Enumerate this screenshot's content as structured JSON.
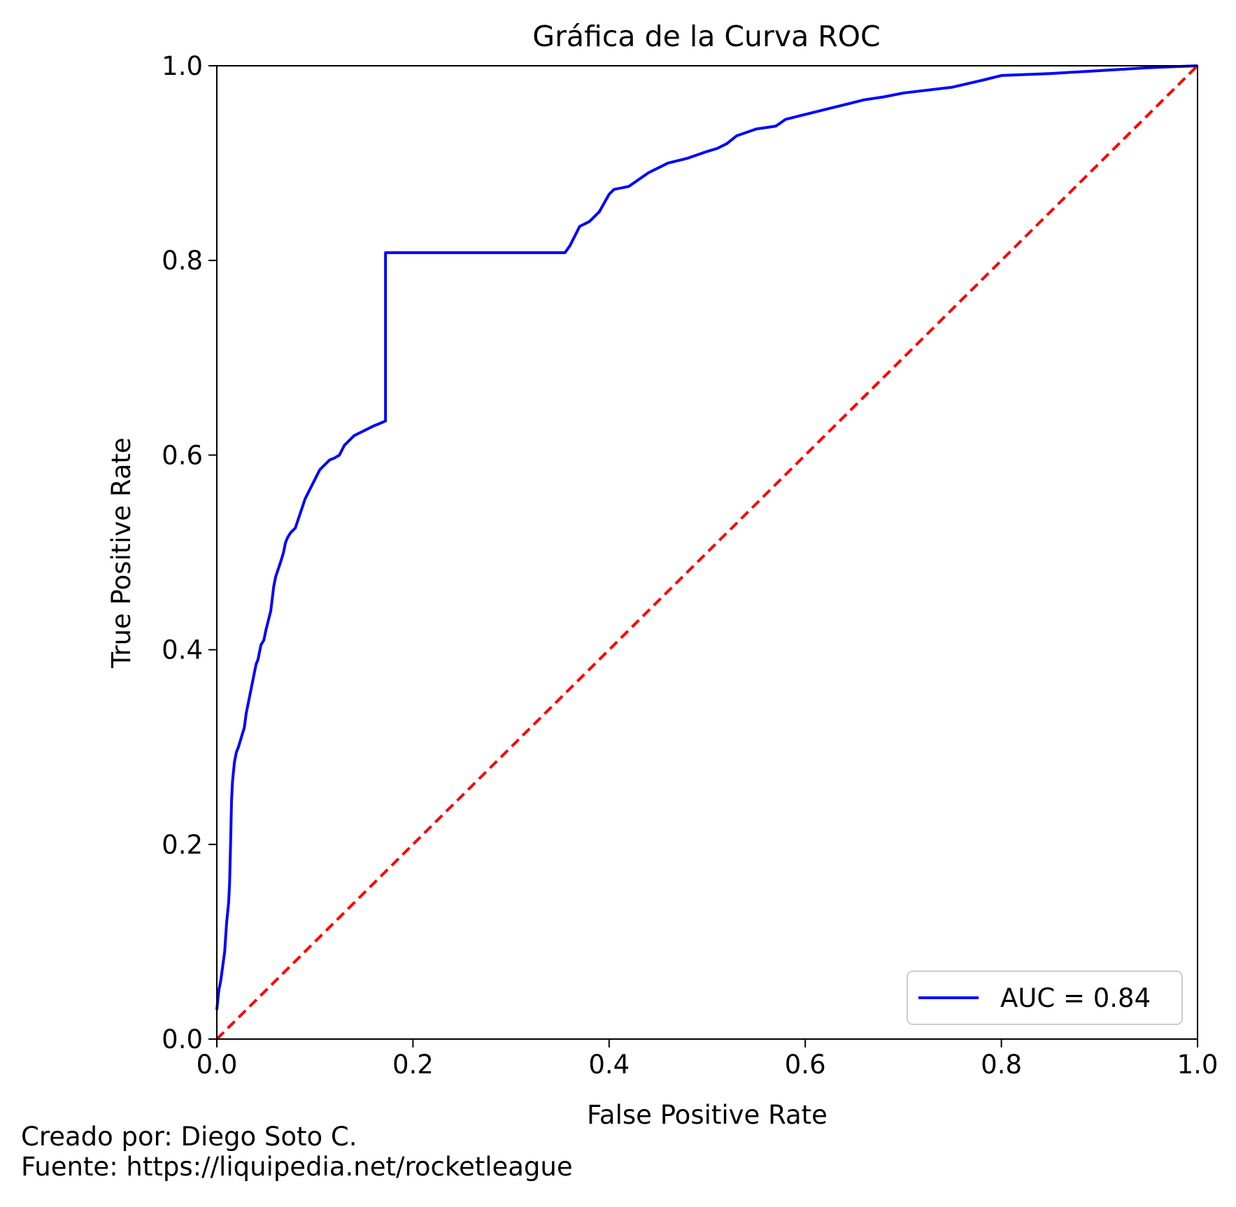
{
  "chart_data": {
    "type": "line",
    "title": "Gráfica de la Curva ROC",
    "xlabel": "False Positive Rate",
    "ylabel": "True Positive Rate",
    "xlim": [
      0.0,
      1.0
    ],
    "ylim": [
      0.0,
      1.0
    ],
    "xticks": [
      "0.0",
      "0.2",
      "0.4",
      "0.6",
      "0.8",
      "1.0"
    ],
    "yticks": [
      "0.0",
      "0.2",
      "0.4",
      "0.6",
      "0.8",
      "1.0"
    ],
    "grid": false,
    "legend": {
      "position": "lower right",
      "entries": [
        "AUC = 0.84"
      ]
    },
    "series": [
      {
        "name": "AUC = 0.84",
        "color": "#0000ff",
        "style": "solid",
        "x": [
          0.0,
          0.002,
          0.004,
          0.006,
          0.008,
          0.01,
          0.012,
          0.013,
          0.014,
          0.015,
          0.016,
          0.018,
          0.02,
          0.022,
          0.025,
          0.028,
          0.03,
          0.032,
          0.035,
          0.038,
          0.04,
          0.042,
          0.045,
          0.048,
          0.05,
          0.055,
          0.058,
          0.06,
          0.065,
          0.068,
          0.07,
          0.072,
          0.075,
          0.08,
          0.085,
          0.09,
          0.095,
          0.1,
          0.105,
          0.11,
          0.115,
          0.12,
          0.125,
          0.13,
          0.14,
          0.15,
          0.16,
          0.165,
          0.172,
          0.172,
          0.2,
          0.25,
          0.3,
          0.355,
          0.36,
          0.365,
          0.37,
          0.38,
          0.39,
          0.4,
          0.405,
          0.42,
          0.43,
          0.44,
          0.45,
          0.46,
          0.48,
          0.5,
          0.51,
          0.52,
          0.53,
          0.55,
          0.57,
          0.58,
          0.6,
          0.62,
          0.64,
          0.66,
          0.68,
          0.7,
          0.75,
          0.78,
          0.8,
          0.85,
          0.9,
          0.95,
          1.0
        ],
        "y": [
          0.03,
          0.05,
          0.06,
          0.075,
          0.09,
          0.12,
          0.14,
          0.16,
          0.2,
          0.245,
          0.265,
          0.285,
          0.295,
          0.3,
          0.31,
          0.32,
          0.335,
          0.345,
          0.36,
          0.375,
          0.385,
          0.39,
          0.405,
          0.41,
          0.42,
          0.44,
          0.465,
          0.475,
          0.49,
          0.5,
          0.51,
          0.515,
          0.52,
          0.525,
          0.54,
          0.555,
          0.565,
          0.575,
          0.585,
          0.59,
          0.595,
          0.597,
          0.6,
          0.61,
          0.62,
          0.625,
          0.63,
          0.632,
          0.635,
          0.808,
          0.808,
          0.808,
          0.808,
          0.808,
          0.815,
          0.825,
          0.835,
          0.84,
          0.85,
          0.868,
          0.873,
          0.876,
          0.883,
          0.89,
          0.895,
          0.9,
          0.905,
          0.912,
          0.915,
          0.92,
          0.928,
          0.935,
          0.938,
          0.945,
          0.95,
          0.955,
          0.96,
          0.965,
          0.968,
          0.972,
          0.978,
          0.985,
          0.99,
          0.992,
          0.995,
          0.998,
          1.0
        ]
      },
      {
        "name": "",
        "color": "#ff0000",
        "style": "dashed",
        "x": [
          0.0,
          1.0
        ],
        "y": [
          0.0,
          1.0
        ]
      }
    ]
  },
  "credits": {
    "author": "Creado por: Diego Soto C.",
    "source": "Fuente: https://liquipedia.net/rocketleague"
  }
}
